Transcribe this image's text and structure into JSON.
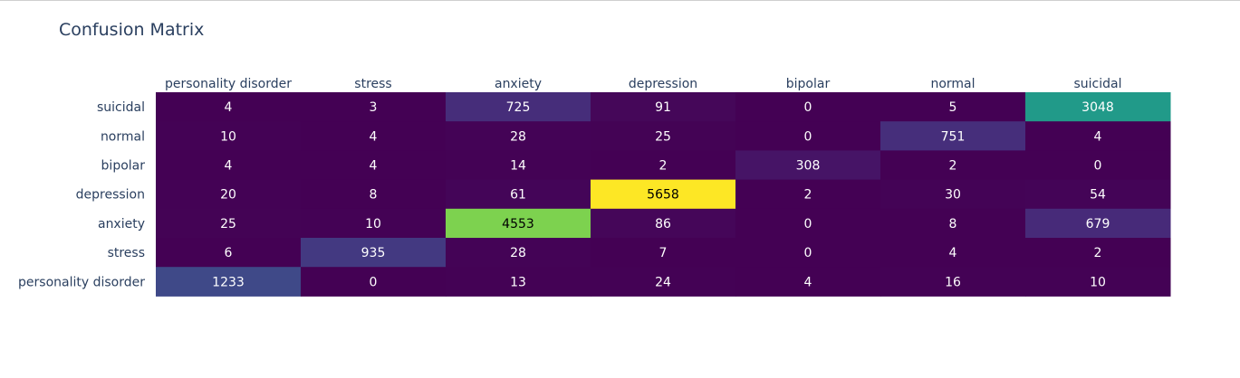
{
  "chart_data": {
    "type": "heatmap",
    "title": "Confusion Matrix",
    "x_categories": [
      "personality disorder",
      "stress",
      "anxiety",
      "depression",
      "bipolar",
      "normal",
      "suicidal"
    ],
    "y_categories": [
      "suicidal",
      "normal",
      "bipolar",
      "depression",
      "anxiety",
      "stress",
      "personality disorder"
    ],
    "z": [
      [
        4,
        3,
        725,
        91,
        0,
        5,
        3048
      ],
      [
        10,
        4,
        28,
        25,
        0,
        751,
        4
      ],
      [
        4,
        4,
        14,
        2,
        308,
        2,
        0
      ],
      [
        20,
        8,
        61,
        5658,
        2,
        30,
        54
      ],
      [
        25,
        10,
        4553,
        86,
        0,
        8,
        679
      ],
      [
        6,
        935,
        28,
        7,
        0,
        4,
        2
      ],
      [
        1233,
        0,
        13,
        24,
        4,
        16,
        10
      ]
    ],
    "colorscale": "Viridis",
    "zmin": 0,
    "zmax": 5658,
    "x_axis_side": "top",
    "colors": {
      "title": "#2a3f5f",
      "label": "#2a3f5f",
      "cell_text_light": "#ffffff",
      "cell_text_dark": "#000000"
    }
  }
}
